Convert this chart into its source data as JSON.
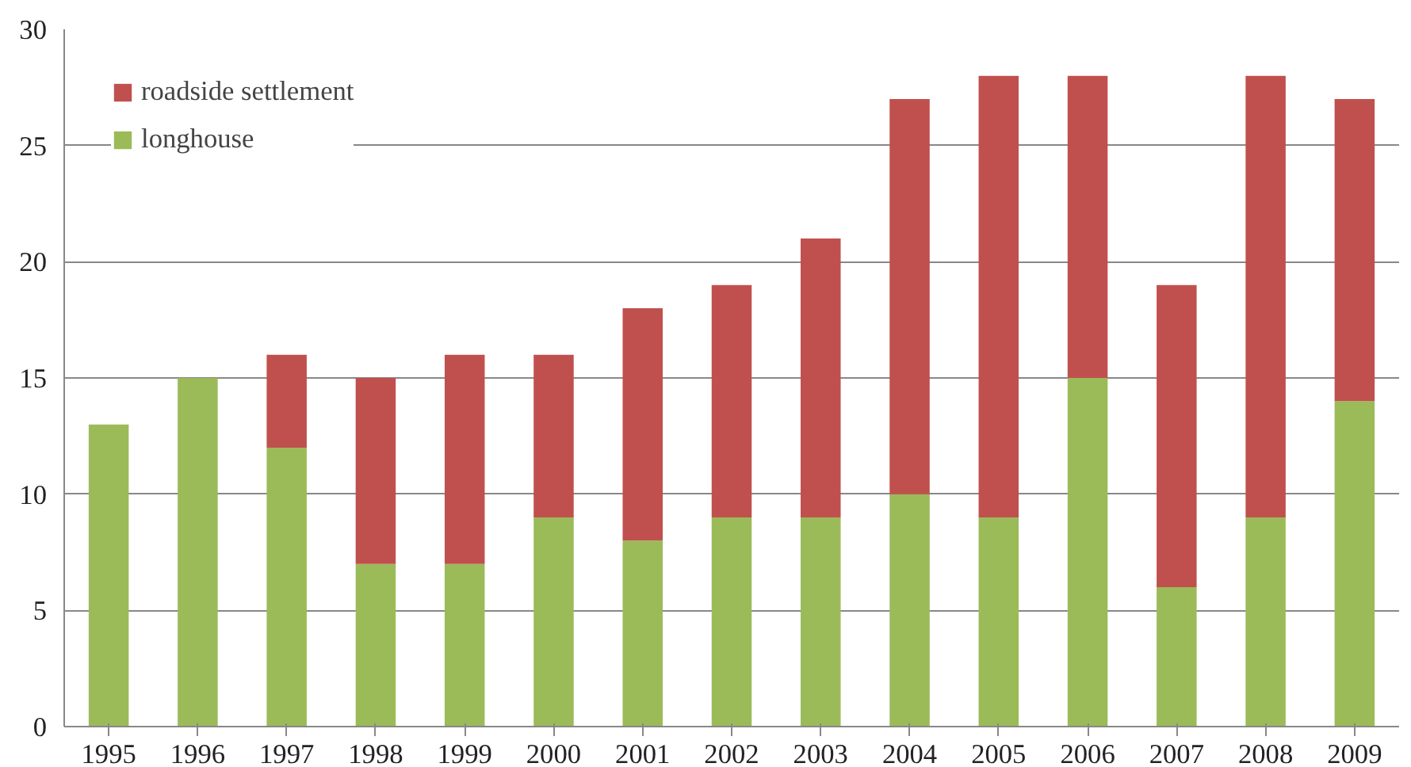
{
  "chart_data": {
    "type": "bar",
    "stacked": true,
    "categories": [
      "1995",
      "1996",
      "1997",
      "1998",
      "1999",
      "2000",
      "2001",
      "2002",
      "2003",
      "2004",
      "2005",
      "2006",
      "2007",
      "2008",
      "2009"
    ],
    "series": [
      {
        "name": "longhouse",
        "color": "#9bbb59",
        "values": [
          13,
          15,
          12,
          7,
          7,
          9,
          8,
          9,
          9,
          10,
          9,
          15,
          6,
          9,
          14
        ]
      },
      {
        "name": "roadside settlement",
        "color": "#c0504d",
        "values": [
          0,
          0,
          4,
          8,
          9,
          7,
          10,
          10,
          12,
          17,
          19,
          13,
          13,
          19,
          13
        ]
      }
    ],
    "ylim": [
      0,
      30
    ],
    "yticks": [
      0,
      5,
      10,
      15,
      20,
      25,
      30
    ],
    "grid": "y",
    "legend": "top left"
  }
}
